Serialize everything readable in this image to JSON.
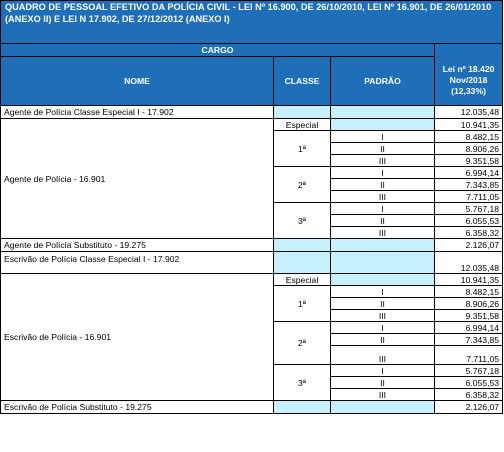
{
  "title": "QUADRO DE PESSOAL EFETIVO DA POLÍCIA CIVIL - LEI Nº 16.900, DE 26/10/2010, LEI Nº 16.901, DE 26/01/2010 (ANEXO II) E LEI N 17.902, DE 27/12/2012 (ANEXO I)",
  "header": {
    "cargo": "CARGO",
    "nome": "NOME",
    "classe": "CLASSE",
    "padrao": "PADRÃO",
    "lei_line1": "Lei nº 18.420",
    "lei_line2": "Nov/2018",
    "lei_line3": "(12,33%)"
  },
  "rows": {
    "agente_especial": {
      "nome": "Agente de Polícia Classe Especial I - 17.902",
      "valor": "12.035,48"
    },
    "agente": {
      "nome": "Agente de Polícia - 16.901",
      "especial_label": "Especial",
      "especial_valor": "10.941,35",
      "c1": "1ª",
      "c1_p1": "I",
      "c1_v1": "8.482,15",
      "c1_p2": "II",
      "c1_v2": "8.906,26",
      "c1_p3": "III",
      "c1_v3": "9.351,58",
      "c2": "2ª",
      "c2_p1": "I",
      "c2_v1": "6.994,14",
      "c2_p2": "II",
      "c2_v2": "7.343,85",
      "c2_p3": "III",
      "c2_v3": "7.711,05",
      "c3": "3ª",
      "c3_p1": "I",
      "c3_v1": "5.767,18",
      "c3_p2": "II",
      "c3_v2": "6.055,53",
      "c3_p3": "III",
      "c3_v3": "6.358,32"
    },
    "agente_substituto": {
      "nome": "Agente de Polícia Substituto - 19.275",
      "valor": "2.126,07"
    },
    "escrivao_especial": {
      "nome": "Escrivão de Polícia Classe Especial I - 17.902",
      "valor": "12.035,48"
    },
    "escrivao": {
      "nome": "Escrivão de Polícia - 16.901",
      "especial_label": "Especial",
      "especial_valor": "10.941,35",
      "c1": "1ª",
      "c1_p1": "I",
      "c1_v1": "8.482,15",
      "c1_p2": "II",
      "c1_v2": "8.906,26",
      "c1_p3": "III",
      "c1_v3": "9.351,58",
      "c2": "2ª",
      "c2_p1": "I",
      "c2_v1": "6.994,14",
      "c2_p2": "II",
      "c2_v2": "7.343,85",
      "c2_p3": "III",
      "c2_v3": "7.711,05",
      "c3": "3ª",
      "c3_p1": "I",
      "c3_v1": "5.767,18",
      "c3_p2": "II",
      "c3_v2": "6.055,53",
      "c3_p3": "III",
      "c3_v3": "6.358,32"
    },
    "escrivao_substituto": {
      "nome": "Escrivão de Polícia Substituto - 19.275",
      "valor": "2.126,07"
    }
  },
  "colors": {
    "header_bg": "#1f6fb8",
    "cell_highlight": "#c6f0fb"
  }
}
